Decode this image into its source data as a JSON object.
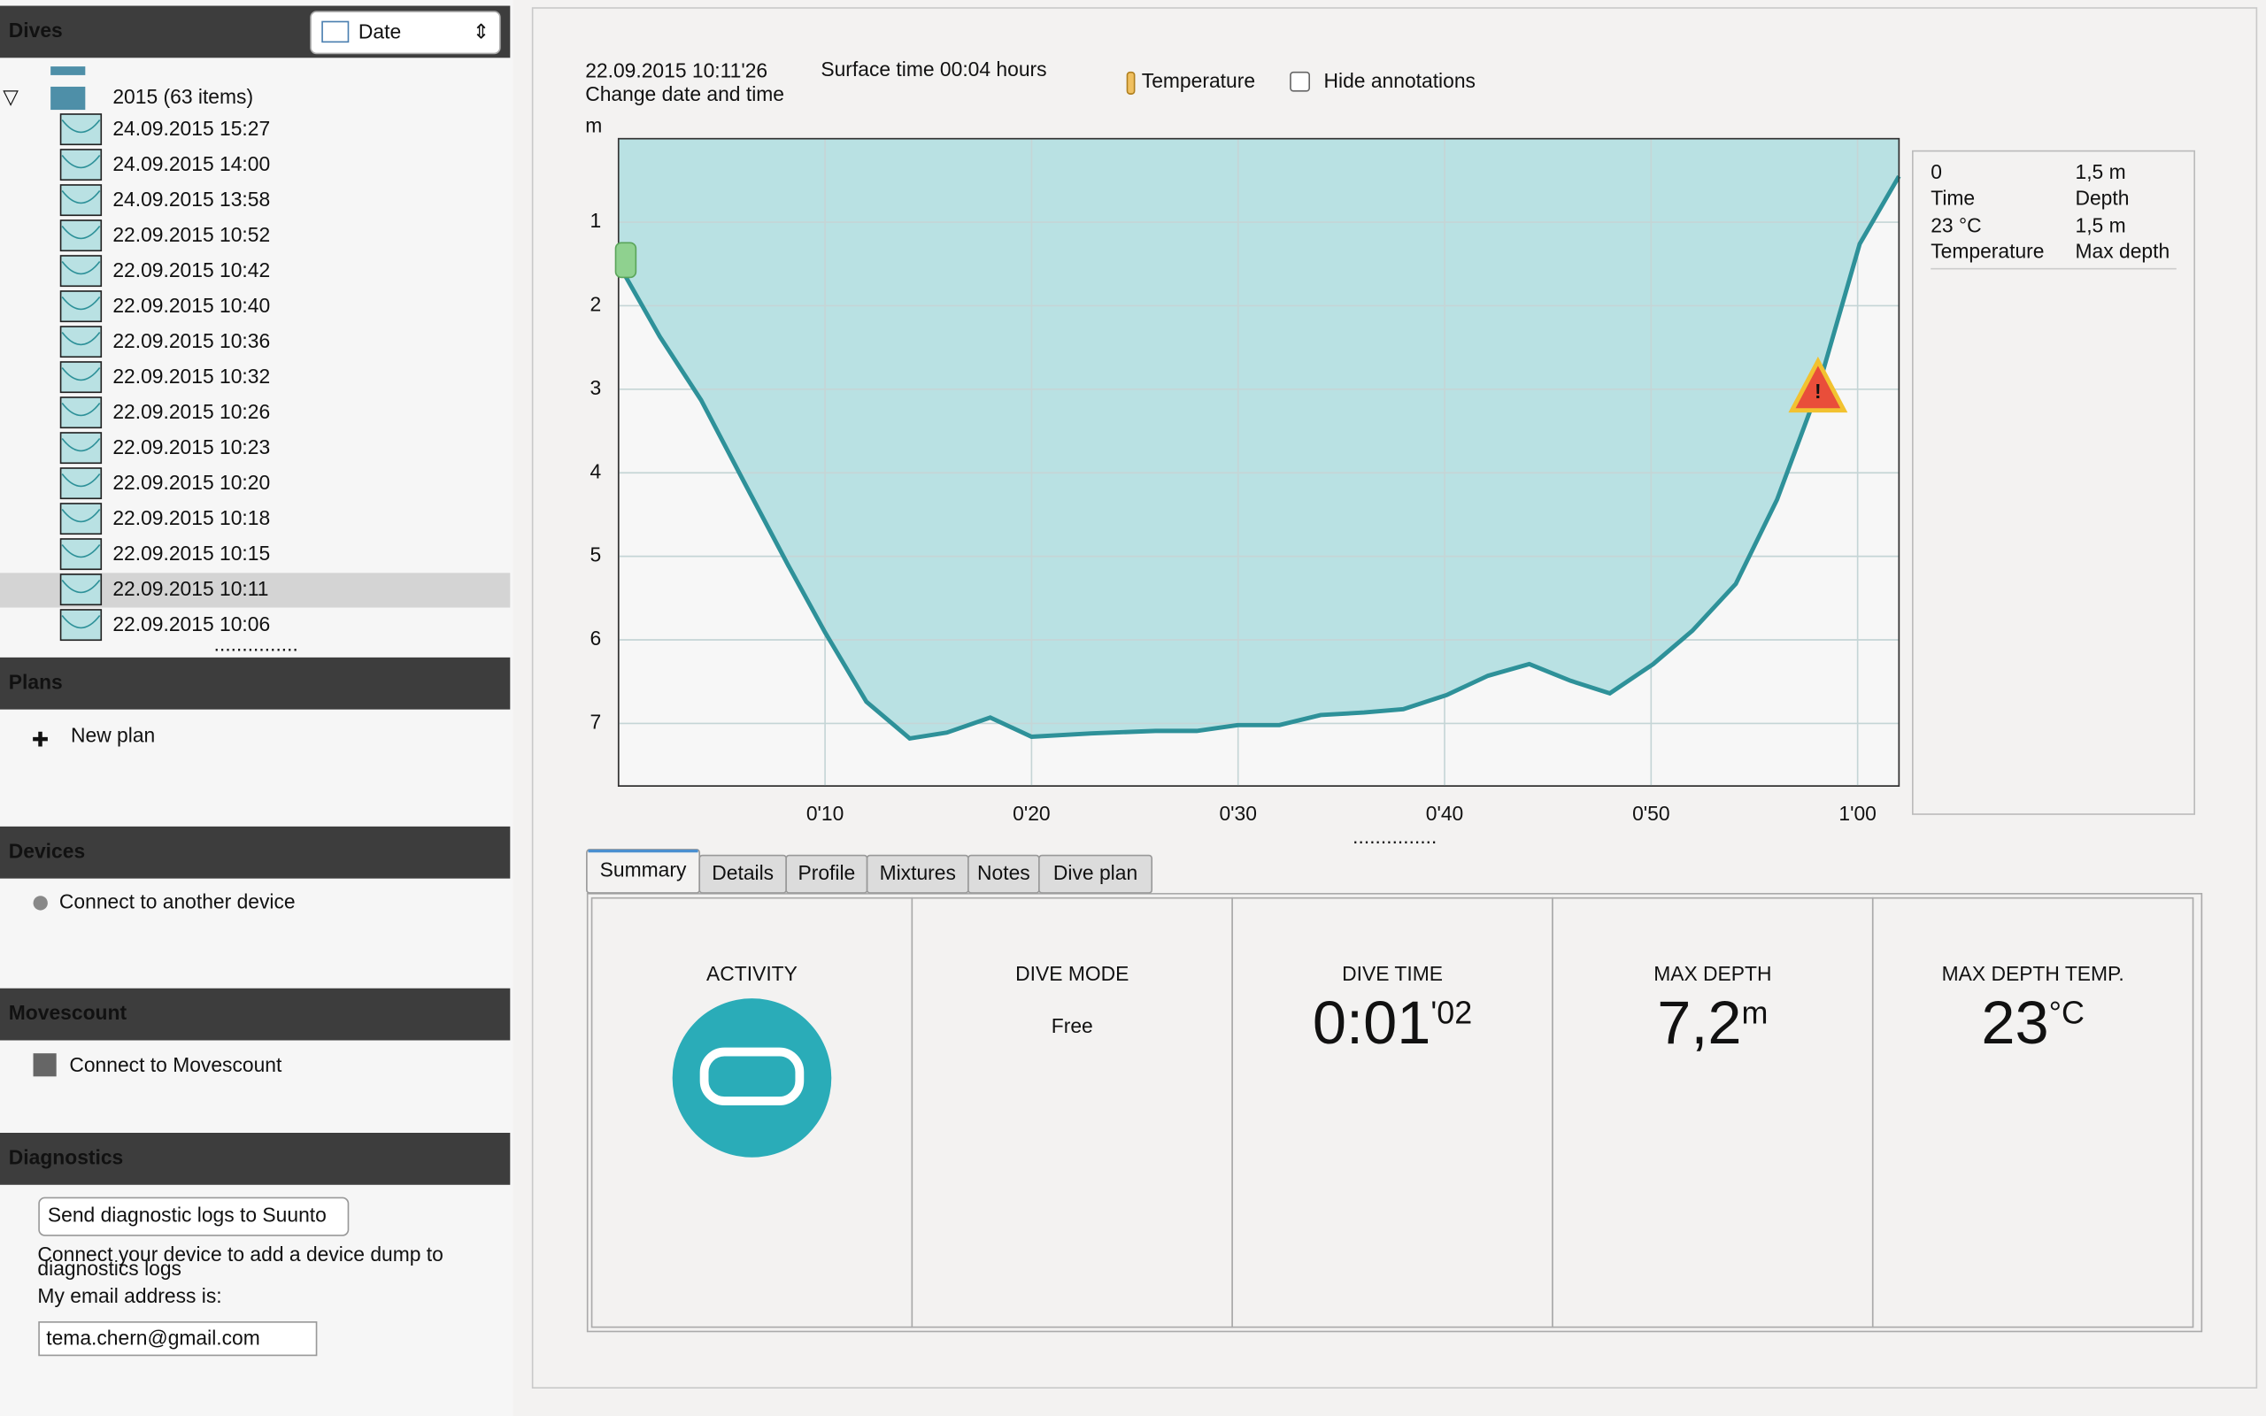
{
  "sidebar": {
    "dives": {
      "title": "Dives",
      "sort": "Date",
      "year": "2015 (63 items)",
      "items": [
        "24.09.2015 15:27",
        "24.09.2015 14:00",
        "24.09.2015 13:58",
        "22.09.2015 10:52",
        "22.09.2015 10:42",
        "22.09.2015 10:40",
        "22.09.2015 10:36",
        "22.09.2015 10:32",
        "22.09.2015 10:26",
        "22.09.2015 10:23",
        "22.09.2015 10:20",
        "22.09.2015 10:18",
        "22.09.2015 10:15",
        "22.09.2015 10:11",
        "22.09.2015 10:06"
      ],
      "selected_index": 13
    },
    "plans": {
      "title": "Plans",
      "item": "New plan"
    },
    "devices": {
      "title": "Devices",
      "item": "Connect to another device"
    },
    "movescount": {
      "title": "Movescount",
      "item": "Connect to Movescount"
    },
    "diagnostics": {
      "title": "Diagnostics",
      "button": "Send diagnostic logs to Suunto",
      "note_lines": [
        "Connect your device to add a device dump to",
        "diagnostics logs"
      ],
      "email_label": "My email address is:",
      "email": "tema.chern@gmail.com"
    }
  },
  "header": {
    "date": "22.09.2015 10:11'26",
    "change_link": "Change date and time",
    "surface_time": "Surface time 00:04 hours",
    "temperature": "Temperature",
    "hide_annotations": "Hide annotations"
  },
  "readout": [
    {
      "value": "0",
      "label": "Time"
    },
    {
      "value": "1,5 m",
      "label": "Depth"
    },
    {
      "value": "23 °C",
      "label": "Temperature"
    },
    {
      "value": "1,5 m",
      "label": "Max depth"
    }
  ],
  "tabs": [
    "Summary",
    "Details",
    "Profile",
    "Mixtures",
    "Notes",
    "Dive plan"
  ],
  "summary": [
    {
      "title": "ACTIVITY"
    },
    {
      "title": "DIVE MODE",
      "value": "Free"
    },
    {
      "title": "DIVE TIME",
      "value": "0:01",
      "unit": "'02"
    },
    {
      "title": "MAX DEPTH",
      "value": "7,2",
      "unit": "m"
    },
    {
      "title": "MAX DEPTH TEMP.",
      "value": "23",
      "unit": "°C"
    }
  ],
  "chart_data": {
    "type": "area",
    "y_label": "m",
    "x": [
      0,
      2,
      4,
      6.1,
      8.2,
      10,
      12,
      14.1,
      15.9,
      18,
      20,
      22.9,
      26,
      28,
      30,
      32,
      34,
      36.1,
      38,
      40.1,
      42.1,
      44.1,
      46.1,
      48,
      50.1,
      52,
      54.1,
      56.1,
      58,
      60.1,
      62
    ],
    "values": [
      1.5,
      2.37,
      3.13,
      4.12,
      5.1,
      5.91,
      6.74,
      7.18,
      7.11,
      6.93,
      7.16,
      7.12,
      7.09,
      7.09,
      7.02,
      7.02,
      6.9,
      6.87,
      6.83,
      6.66,
      6.43,
      6.29,
      6.49,
      6.64,
      6.29,
      5.89,
      5.33,
      4.32,
      3.06,
      1.26,
      0.45
    ],
    "xlim": [
      0,
      62
    ],
    "ylim": [
      0,
      7.75
    ],
    "y_inverted": true,
    "xticks": [
      {
        "value": 10,
        "label": "0'10"
      },
      {
        "value": 20,
        "label": "0'20"
      },
      {
        "value": 30,
        "label": "0'30"
      },
      {
        "value": 40,
        "label": "0'40"
      },
      {
        "value": 50,
        "label": "0'50"
      },
      {
        "value": 60,
        "label": "1'00"
      }
    ],
    "yticks": [
      1,
      2,
      3,
      4,
      5,
      6,
      7
    ],
    "color": "#2e9199",
    "fill": "#b9e1e3",
    "grid": true
  }
}
